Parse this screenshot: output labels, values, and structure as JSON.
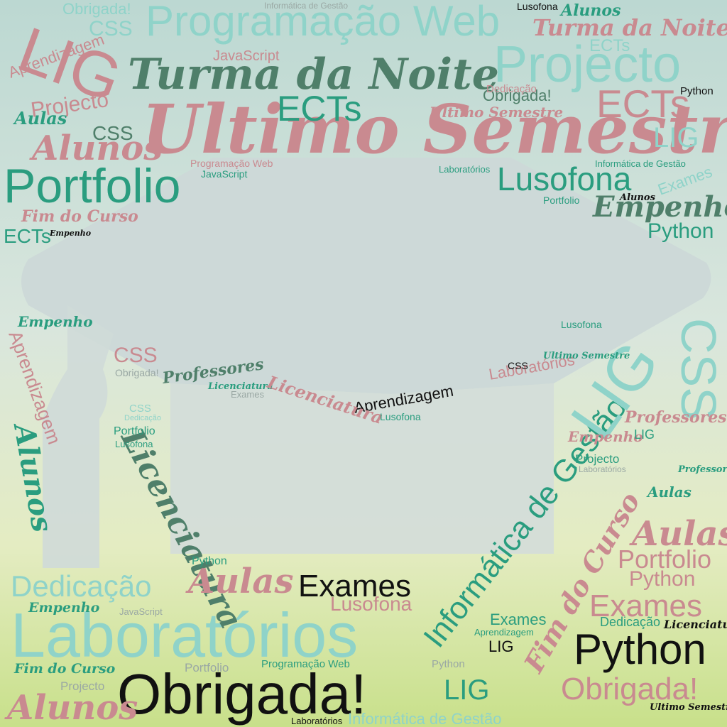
{
  "words": [
    "Ultimo Semestre",
    "Turma da Noite",
    "Programação Web",
    "LIG",
    "Projecto",
    "Portfolio",
    "ECTs",
    "ECTs",
    "Lusofona",
    "Alunos",
    "Empenho",
    "Python",
    "Laboratórios",
    "Obrigada!",
    "Python",
    "Exames",
    "Informática de Gestão",
    "Licenciatura",
    "LIG",
    "CSS",
    "Dedicação",
    "Aulas",
    "Aulas",
    "Portfolio",
    "Exames",
    "Obrigada!",
    "Alunos",
    "Fim do Curso",
    "Aprendizagem",
    "CSS",
    "Professores",
    "Laboratórios",
    "Lusofona",
    "LIG",
    "Obrigada!",
    "Python",
    "Aprendizagem",
    "Projecto",
    "CSS",
    "Aulas",
    "CSS",
    "Obrigada!",
    "Alunos",
    "Turma da Noite",
    "ECTs",
    "JavaScript",
    "Informática de Gestão",
    "Lusofona",
    "Ultimo Semestre",
    "Dedicação",
    "Programação Web",
    "JavaScript",
    "Laboratórios",
    "Informática de Gestão",
    "LIG",
    "Fim do Curso",
    "ECTs",
    "Empenho",
    "Python",
    "Programação Web",
    "Portfolio",
    "Projecto",
    "Fim do Curso",
    "Empenho",
    "JavaScript",
    "Laboratórios",
    "Informática de Gestão",
    "Ultimo Semestre",
    "Licenciatura",
    "Dedicação",
    "Exames",
    "Aprendizagem",
    "LIG",
    "Python",
    "Professores",
    "Python",
    "Portfolio",
    "Lusofona",
    "CSS",
    "Dedicação",
    "Obrigada!",
    "Alunos",
    "Aprendizagem",
    "Projecto",
    "Laboratórios",
    "Empenho",
    "LIG",
    "Aulas",
    "Professores",
    "Ultimo Semestre",
    "CSS",
    "Lusofona",
    "Exames",
    "Portfolio",
    "Alunos",
    "Licenciatura",
    "Exames",
    "Licenciatura",
    "Lusofona",
    "Empenho"
  ]
}
